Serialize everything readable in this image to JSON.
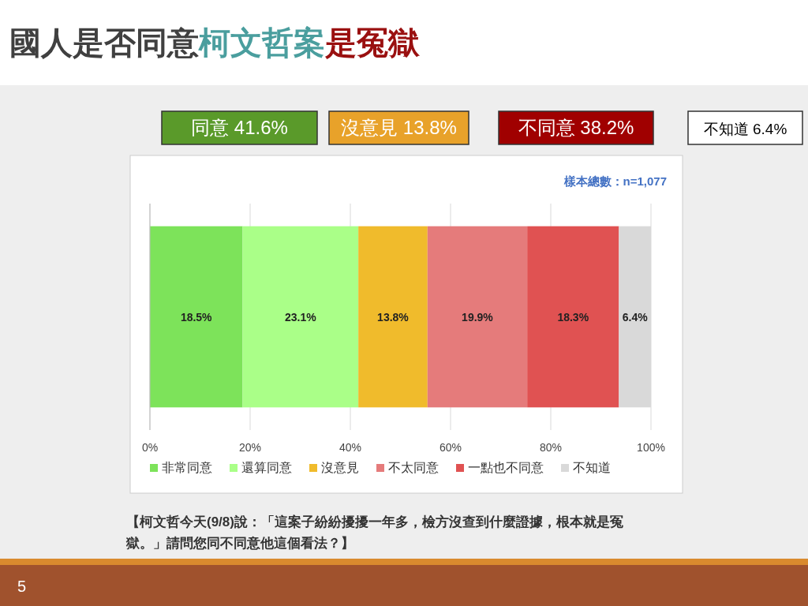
{
  "chart_data": {
    "type": "bar",
    "orientation": "horizontal",
    "stacked": true,
    "title": "國人是否同意柯文哲案是冤獄",
    "categories": [
      null
    ],
    "series": [
      {
        "name": "非常同意",
        "color": "#7de35a",
        "values": [
          18.5
        ],
        "value_labels": [
          "18.5%"
        ]
      },
      {
        "name": "還算同意",
        "color": "#aaff88",
        "values": [
          23.1
        ],
        "value_labels": [
          "23.1%"
        ]
      },
      {
        "name": "沒意見",
        "color": "#f0bb2c",
        "values": [
          13.8
        ],
        "value_labels": [
          "13.8%"
        ]
      },
      {
        "name": "不太同意",
        "color": "#e57b7b",
        "values": [
          19.9
        ],
        "value_labels": [
          "19.9%"
        ]
      },
      {
        "name": "一點也不同意",
        "color": "#e05252",
        "values": [
          18.3
        ],
        "value_labels": [
          "18.3%"
        ]
      },
      {
        "name": "不知道",
        "color": "#d9d9d9",
        "values": [
          6.4
        ],
        "value_labels": [
          "6.4%"
        ]
      }
    ],
    "xlim": [
      0,
      100
    ],
    "xticks": [
      {
        "value": 0,
        "label": "0%"
      },
      {
        "value": 20,
        "label": "20%"
      },
      {
        "value": 40,
        "label": "40%"
      },
      {
        "value": 60,
        "label": "60%"
      },
      {
        "value": 80,
        "label": "80%"
      },
      {
        "value": 100,
        "label": "100%"
      }
    ],
    "grid": "x",
    "legend": "bottom",
    "annotations": [
      "同意 41.6%",
      "沒意見 13.8%",
      "不同意 38.2%",
      "不知道 6.4%",
      "樣本總數：n=1,077",
      "【柯文哲今天(9/8)說：「這案子紛紛擾擾一年多，檢方沒查到什麼證據，根本就是冤獄。」請問您同不同意他這個看法？】",
      "5"
    ]
  }
}
